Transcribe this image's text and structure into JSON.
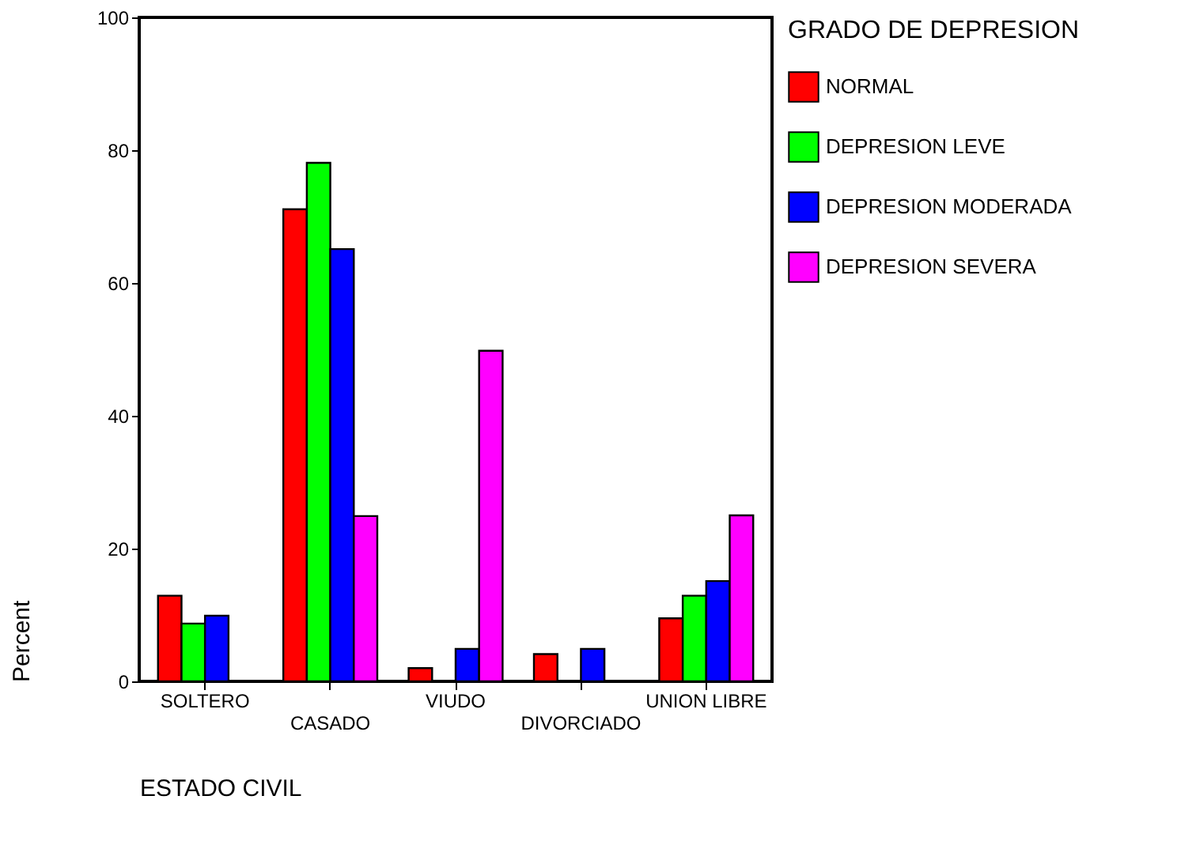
{
  "chart_data": {
    "type": "bar",
    "xlabel": "ESTADO CIVIL",
    "ylabel": "Percent",
    "legend_title": "GRADO DE DEPRESION",
    "categories": [
      "SOLTERO",
      "CASADO",
      "VIUDO",
      "DIVORCIADO",
      "UNION LIBRE"
    ],
    "series": [
      {
        "name": "NORMAL",
        "color": "#ff0000",
        "values": [
          12.9,
          71.1,
          2.0,
          4.1,
          9.5
        ]
      },
      {
        "name": "DEPRESION LEVE",
        "color": "#00ff00",
        "values": [
          8.7,
          78.1,
          null,
          null,
          12.9
        ]
      },
      {
        "name": "DEPRESION MODERADA",
        "color": "#0000ff",
        "values": [
          9.9,
          65.1,
          4.9,
          4.9,
          15.1
        ]
      },
      {
        "name": "DEPRESION SEVERA",
        "color": "#ff00ff",
        "values": [
          null,
          24.9,
          49.8,
          null,
          25.0
        ]
      }
    ],
    "ylim": [
      0,
      100
    ],
    "yticks": [
      0,
      20,
      40,
      60,
      80,
      100
    ],
    "grid": false,
    "legend": "right"
  }
}
